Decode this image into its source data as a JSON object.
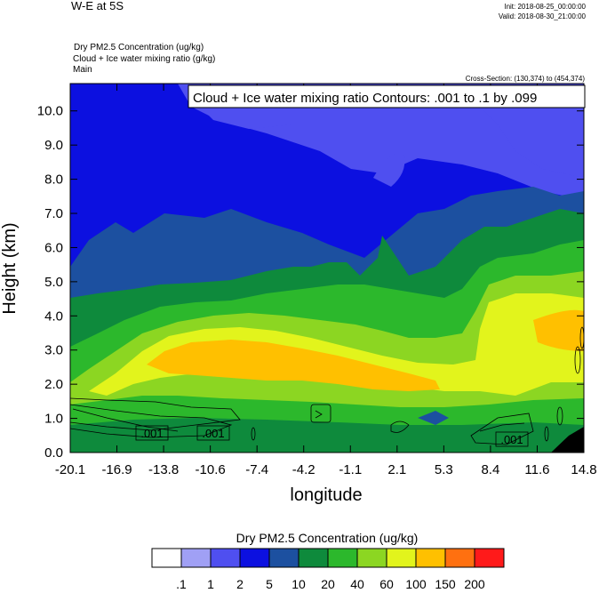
{
  "header": {
    "title": "W-E at 5S",
    "init": "Init: 2018-08-25_00:00:00",
    "valid": "Valid: 2018-08-30_21:00:00",
    "field_line1": "Dry PM2.5 Concentration   (ug/kg)",
    "field_line2": "Cloud + Ice water mixing ratio   (g/kg)",
    "field_line3": "Main",
    "cross_section": "Cross-Section: (130,374) to (454,374)",
    "contour_info": "Cloud + Ice water mixing ratio Contours: .001 to .1 by .099"
  },
  "chart_data": {
    "type": "heatmap",
    "xlabel": "longitude",
    "ylabel": "Height (km)",
    "xlim": [
      -20.1,
      14.8
    ],
    "ylim": [
      0.0,
      10.8
    ],
    "x_ticks": [
      "-20.1",
      "-16.9",
      "-13.8",
      "-10.6",
      "-7.4",
      "-4.2",
      "-1.1",
      "2.1",
      "5.3",
      "8.4",
      "11.6",
      "14.8"
    ],
    "y_ticks": [
      "0.0",
      "1.0",
      "2.0",
      "3.0",
      "4.0",
      "5.0",
      "6.0",
      "7.0",
      "8.0",
      "9.0",
      "10.0"
    ],
    "colorbar": {
      "title": "Dry PM2.5 Concentration  (ug/kg)",
      "levels": [
        ".1",
        "1",
        "2",
        "5",
        "10",
        "20",
        "40",
        "60",
        "100",
        "150",
        "200"
      ],
      "colors": [
        "#ffffff",
        "#a0a0f5",
        "#4f4ff0",
        "#0c10e0",
        "#1c50a0",
        "#0e8a3c",
        "#2cb82c",
        "#8cd622",
        "#e2f41c",
        "#ffc000",
        "#ff7010",
        "#ff1a1a"
      ]
    },
    "contour_labels": [
      ".001",
      ".001",
      ".001"
    ]
  }
}
